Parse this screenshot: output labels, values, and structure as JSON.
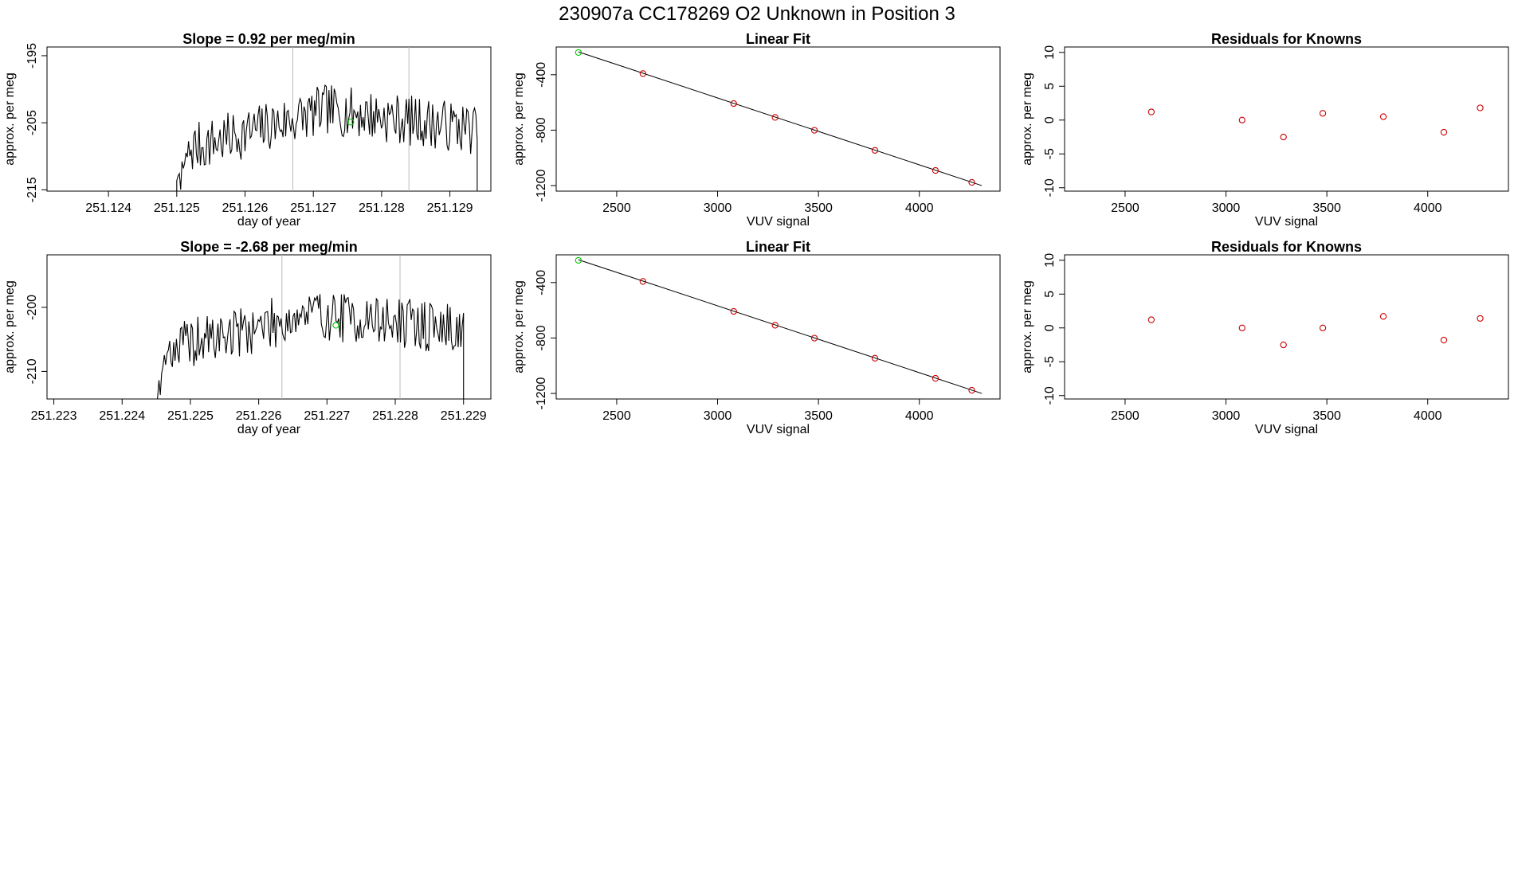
{
  "figure_title": "230907a      CC178269   O2 Unknown in Position  3",
  "colors": {
    "trace": "#000000",
    "unknown_point": "#00cc00",
    "known_point": "#cc0000",
    "cycle_divider": "#bbbbbb",
    "frame": "#000000"
  },
  "chart_data": [
    {
      "id": "trace-1",
      "type": "line",
      "title": "Slope =  0.92  per meg/min",
      "xlabel": "day of year",
      "ylabel": "approx. per meg",
      "xlim": [
        251.1231,
        251.1296
      ],
      "ylim": [
        -215.2,
        -193.7
      ],
      "xticks": [
        251.124,
        251.125,
        251.126,
        251.127,
        251.128,
        251.129
      ],
      "xtick_labels": [
        "251.124",
        "251.125",
        "251.126",
        "251.127",
        "251.128",
        "251.129"
      ],
      "yticks": [
        -195,
        -205,
        -215
      ],
      "ytick_labels": [
        "-195",
        "-205",
        "-215"
      ],
      "trace": {
        "x_start": 251.125,
        "x_end": 251.1294,
        "n": 230,
        "seed": 7,
        "base_start": -209.5,
        "base_mid": -203.0,
        "base_end": -206.0,
        "noise": 3.8,
        "lead_low": -215.2,
        "tail_low": -215.2
      },
      "cycle_dividers": [
        251.1267,
        251.1284
      ],
      "unknown_point": {
        "x": 251.12755,
        "y": -204.9
      }
    },
    {
      "id": "fit-1",
      "type": "scatter",
      "title": "Linear Fit",
      "xlabel": "VUV signal",
      "ylabel": "approx. per meg",
      "xlim": [
        2200,
        4400
      ],
      "ylim": [
        -1240,
        -200
      ],
      "xticks": [
        2500,
        3000,
        3500,
        4000
      ],
      "xtick_labels": [
        "2500",
        "3000",
        "3500",
        "4000"
      ],
      "yticks": [
        -400,
        -800,
        -1200
      ],
      "ytick_labels": [
        "-400",
        "-800",
        "-1200"
      ],
      "line": {
        "x": [
          2310,
          4310
        ],
        "y": [
          -235,
          -1200
        ]
      },
      "unknown_points": [
        {
          "x": 2310,
          "y": -240
        }
      ],
      "known_points": [
        {
          "x": 2630,
          "y": -392
        },
        {
          "x": 3080,
          "y": -608
        },
        {
          "x": 3285,
          "y": -708
        },
        {
          "x": 3480,
          "y": -801
        },
        {
          "x": 3780,
          "y": -946
        },
        {
          "x": 4080,
          "y": -1091
        },
        {
          "x": 4260,
          "y": -1177
        }
      ]
    },
    {
      "id": "resid-1",
      "type": "scatter",
      "title": "Residuals for Knowns",
      "xlabel": "VUV signal",
      "ylabel": "approx. per meg",
      "xlim": [
        2200,
        4400
      ],
      "ylim": [
        -10.5,
        10.8
      ],
      "xticks": [
        2500,
        3000,
        3500,
        4000
      ],
      "xtick_labels": [
        "2500",
        "3000",
        "3500",
        "4000"
      ],
      "yticks": [
        10,
        5,
        0,
        -5,
        -10
      ],
      "ytick_labels": [
        "10",
        "5",
        "0",
        "-5",
        "-10"
      ],
      "known_points": [
        {
          "x": 2630,
          "y": 1.2
        },
        {
          "x": 3080,
          "y": 0.0
        },
        {
          "x": 3285,
          "y": -2.5
        },
        {
          "x": 3480,
          "y": 1.0
        },
        {
          "x": 3780,
          "y": 0.5
        },
        {
          "x": 4080,
          "y": -1.8
        },
        {
          "x": 4260,
          "y": 1.8
        }
      ]
    },
    {
      "id": "trace-2",
      "type": "line",
      "title": "Slope =  -2.68  per meg/min",
      "xlabel": "day of year",
      "ylabel": "approx. per meg",
      "xlim": [
        251.2229,
        251.2294
      ],
      "ylim": [
        -214.3,
        -191.8
      ],
      "xticks": [
        251.223,
        251.224,
        251.225,
        251.226,
        251.227,
        251.228,
        251.229
      ],
      "xtick_labels": [
        "251.223",
        "251.224",
        "251.225",
        "251.226",
        "251.227",
        "251.228",
        "251.229"
      ],
      "yticks": [
        -200,
        -210
      ],
      "ytick_labels": [
        "-200",
        "-210"
      ],
      "trace": {
        "x_start": 251.2245,
        "x_end": 251.229,
        "n": 230,
        "seed": 19,
        "base_start": -207.0,
        "base_mid": -201.0,
        "base_end": -203.5,
        "noise": 4.0,
        "lead_low": -214.3,
        "tail_low": -214.3
      },
      "cycle_dividers": [
        251.22634,
        251.22807
      ],
      "unknown_point": {
        "x": 251.22713,
        "y": -202.8
      }
    },
    {
      "id": "fit-2",
      "type": "scatter",
      "title": "Linear Fit",
      "xlabel": "VUV signal",
      "ylabel": "approx. per meg",
      "xlim": [
        2200,
        4400
      ],
      "ylim": [
        -1240,
        -200
      ],
      "xticks": [
        2500,
        3000,
        3500,
        4000
      ],
      "xtick_labels": [
        "2500",
        "3000",
        "3500",
        "4000"
      ],
      "yticks": [
        -400,
        -800,
        -1200
      ],
      "ytick_labels": [
        "-400",
        "-800",
        "-1200"
      ],
      "line": {
        "x": [
          2310,
          4310
        ],
        "y": [
          -235,
          -1200
        ]
      },
      "unknown_points": [
        {
          "x": 2310,
          "y": -240
        }
      ],
      "known_points": [
        {
          "x": 2630,
          "y": -392
        },
        {
          "x": 3080,
          "y": -608
        },
        {
          "x": 3285,
          "y": -708
        },
        {
          "x": 3480,
          "y": -801
        },
        {
          "x": 3780,
          "y": -946
        },
        {
          "x": 4080,
          "y": -1091
        },
        {
          "x": 4260,
          "y": -1177
        }
      ]
    },
    {
      "id": "resid-2",
      "type": "scatter",
      "title": "Residuals for Knowns",
      "xlabel": "VUV signal",
      "ylabel": "approx. per meg",
      "xlim": [
        2200,
        4400
      ],
      "ylim": [
        -10.5,
        10.8
      ],
      "xticks": [
        2500,
        3000,
        3500,
        4000
      ],
      "xtick_labels": [
        "2500",
        "3000",
        "3500",
        "4000"
      ],
      "yticks": [
        10,
        5,
        0,
        -5,
        -10
      ],
      "ytick_labels": [
        "10",
        "5",
        "0",
        "-5",
        "-10"
      ],
      "known_points": [
        {
          "x": 2630,
          "y": 1.2
        },
        {
          "x": 3080,
          "y": 0.0
        },
        {
          "x": 3285,
          "y": -2.5
        },
        {
          "x": 3480,
          "y": 0.0
        },
        {
          "x": 3780,
          "y": 1.7
        },
        {
          "x": 4080,
          "y": -1.8
        },
        {
          "x": 4260,
          "y": 1.4
        }
      ]
    }
  ]
}
